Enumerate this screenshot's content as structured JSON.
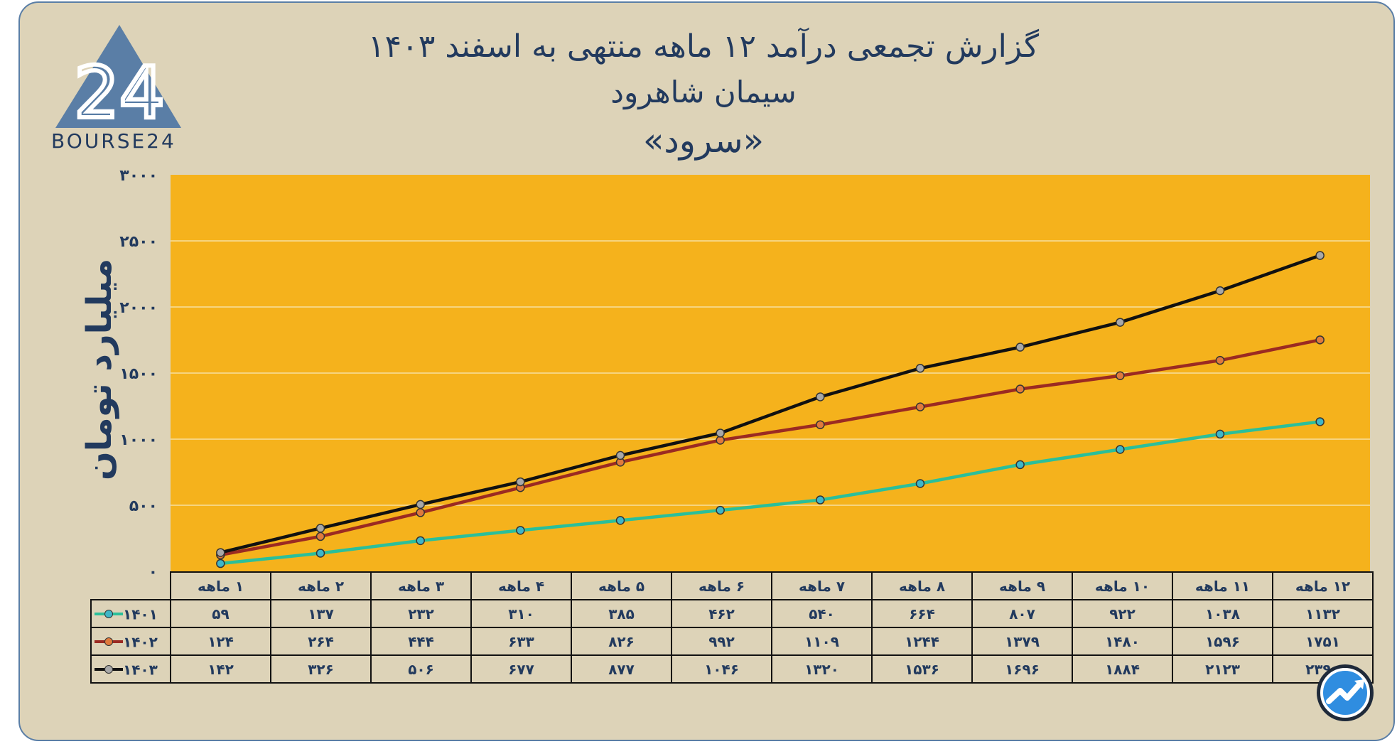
{
  "title_lines": [
    "گزارش تجمعی درآمد ۱۲ ماهه منتهی به اسفند ۱۴۰۳",
    "سیمان شاهرود",
    "«سرود»"
  ],
  "logo": {
    "brand_text": "BOURSE24",
    "mark": "24"
  },
  "colors": {
    "background": "#ddd3b8",
    "plot_area": "#f5b21c",
    "title_text": "#223a5e"
  },
  "chart_data": {
    "type": "line",
    "title": "گزارش تجمعی درآمد ۱۲ ماهه منتهی به اسفند ۱۴۰۳ سیمان شاهرود «سرود»",
    "ylabel": "میلیارد تومان",
    "xlabel": "",
    "ylim": [
      0,
      3000
    ],
    "yticks": [
      0,
      500,
      1000,
      1500,
      2000,
      2500,
      3000
    ],
    "ytick_labels": [
      "۰",
      "۵۰۰",
      "۱۰۰۰",
      "۱۵۰۰",
      "۲۰۰۰",
      "۲۵۰۰",
      "۳۰۰۰"
    ],
    "grid": true,
    "legend": "data-table",
    "categories": [
      "۱ ماهه",
      "۲ ماهه",
      "۳ ماهه",
      "۴ ماهه",
      "۵ ماهه",
      "۶ ماهه",
      "۷ ماهه",
      "۸ ماهه",
      "۹ ماهه",
      "۱۰ ماهه",
      "۱۱ ماهه",
      "۱۲ ماهه"
    ],
    "series": [
      {
        "name": "۱۴۰۱",
        "color": "#2bbf9a",
        "values": [
          59,
          137,
          232,
          310,
          385,
          462,
          540,
          664,
          807,
          922,
          1038,
          1132
        ],
        "labels": [
          "۵۹",
          "۱۳۷",
          "۲۳۲",
          "۳۱۰",
          "۳۸۵",
          "۴۶۲",
          "۵۴۰",
          "۶۶۴",
          "۸۰۷",
          "۹۲۲",
          "۱۰۳۸",
          "۱۱۳۲"
        ]
      },
      {
        "name": "۱۴۰۲",
        "color": "#9b2a22",
        "values": [
          124,
          264,
          444,
          633,
          826,
          992,
          1109,
          1244,
          1379,
          1480,
          1596,
          1751
        ],
        "labels": [
          "۱۲۴",
          "۲۶۴",
          "۴۴۴",
          "۶۳۳",
          "۸۲۶",
          "۹۹۲",
          "۱۱۰۹",
          "۱۲۴۴",
          "۱۳۷۹",
          "۱۴۸۰",
          "۱۵۹۶",
          "۱۷۵۱"
        ]
      },
      {
        "name": "۱۴۰۳",
        "color": "#111111",
        "values": [
          142,
          326,
          506,
          677,
          877,
          1046,
          1320,
          1536,
          1696,
          1884,
          2123,
          2390
        ],
        "labels": [
          "۱۴۲",
          "۳۲۶",
          "۵۰۶",
          "۶۷۷",
          "۸۷۷",
          "۱۰۴۶",
          "۱۳۲۰",
          "۱۵۳۶",
          "۱۶۹۶",
          "۱۸۸۴",
          "۲۱۲۳",
          "۲۳۹۰"
        ]
      }
    ]
  }
}
